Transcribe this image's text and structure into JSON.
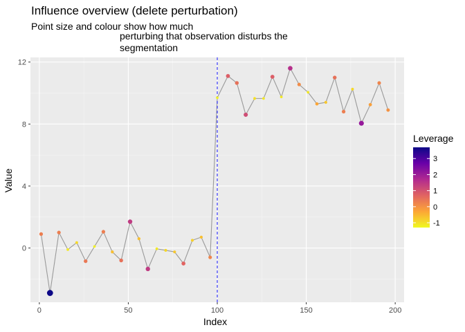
{
  "chart_data": {
    "type": "line",
    "title": "Influence overview (delete perturbation)",
    "subtitle_lines": [
      "Point size and colour show how much",
      "perturbing that observation disturbs the",
      "segmentation"
    ],
    "xlabel": "Index",
    "ylabel": "Value",
    "xlim": [
      -5,
      205
    ],
    "ylim": [
      -3.5,
      12.3
    ],
    "x_ticks": [
      0,
      50,
      100,
      150,
      200
    ],
    "y_ticks": [
      0,
      4,
      8,
      12
    ],
    "grid": true,
    "changepoint_x": 100,
    "line_color": "#999999",
    "changepoint_color": "#2a2aff",
    "panel_background": "#ebebeb",
    "legend": {
      "title": "Leverage",
      "position": "right",
      "ticks": [
        -1,
        0,
        1,
        2,
        3
      ],
      "range": [
        -1.3,
        3.7
      ],
      "colors": [
        "#0d0887",
        "#6a00a8",
        "#b12a90",
        "#e16462",
        "#fca636",
        "#f0f921"
      ]
    },
    "points": [
      {
        "x": 1,
        "y": 0.9,
        "leverage": 0.3
      },
      {
        "x": 6,
        "y": -2.9,
        "leverage": 3.7
      },
      {
        "x": 11,
        "y": 1.0,
        "leverage": 0.3
      },
      {
        "x": 16,
        "y": -0.1,
        "leverage": -1.1
      },
      {
        "x": 21,
        "y": 0.35,
        "leverage": -0.9
      },
      {
        "x": 26,
        "y": -0.85,
        "leverage": 0.4
      },
      {
        "x": 31,
        "y": 0.1,
        "leverage": -1.2
      },
      {
        "x": 36,
        "y": 1.05,
        "leverage": 0.3
      },
      {
        "x": 41,
        "y": -0.25,
        "leverage": -0.6
      },
      {
        "x": 46,
        "y": -0.8,
        "leverage": 0.5
      },
      {
        "x": 51,
        "y": 1.7,
        "leverage": 1.4
      },
      {
        "x": 56,
        "y": 0.6,
        "leverage": -0.6
      },
      {
        "x": 61,
        "y": -1.35,
        "leverage": 1.4
      },
      {
        "x": 66,
        "y": -0.05,
        "leverage": -1.1
      },
      {
        "x": 71,
        "y": -0.15,
        "leverage": -0.9
      },
      {
        "x": 76,
        "y": -0.25,
        "leverage": -0.7
      },
      {
        "x": 81,
        "y": -1.0,
        "leverage": 0.7
      },
      {
        "x": 86,
        "y": 0.5,
        "leverage": -0.8
      },
      {
        "x": 91,
        "y": 0.7,
        "leverage": -0.6
      },
      {
        "x": 96,
        "y": -0.6,
        "leverage": 0.2
      },
      {
        "x": 100,
        "y": 9.7,
        "leverage": -1.2
      },
      {
        "x": 106,
        "y": 11.1,
        "leverage": 0.8
      },
      {
        "x": 111,
        "y": 10.65,
        "leverage": 0.5
      },
      {
        "x": 116,
        "y": 8.6,
        "leverage": 1.1
      },
      {
        "x": 121,
        "y": 9.65,
        "leverage": -1.0
      },
      {
        "x": 126,
        "y": 9.65,
        "leverage": -1.1
      },
      {
        "x": 131,
        "y": 11.05,
        "leverage": 0.8
      },
      {
        "x": 136,
        "y": 9.75,
        "leverage": -1.1
      },
      {
        "x": 141,
        "y": 11.6,
        "leverage": 1.6
      },
      {
        "x": 146,
        "y": 10.55,
        "leverage": 0.1
      },
      {
        "x": 151,
        "y": 10.05,
        "leverage": -1.1
      },
      {
        "x": 156,
        "y": 9.3,
        "leverage": -0.3
      },
      {
        "x": 161,
        "y": 9.4,
        "leverage": -0.7
      },
      {
        "x": 166,
        "y": 11.0,
        "leverage": 0.5
      },
      {
        "x": 171,
        "y": 8.8,
        "leverage": 0.3
      },
      {
        "x": 176,
        "y": 10.25,
        "leverage": -0.9
      },
      {
        "x": 181,
        "y": 8.05,
        "leverage": 2.1
      },
      {
        "x": 186,
        "y": 9.25,
        "leverage": -0.2
      },
      {
        "x": 191,
        "y": 10.65,
        "leverage": 0.2
      },
      {
        "x": 196,
        "y": 8.9,
        "leverage": 0.0
      }
    ]
  }
}
